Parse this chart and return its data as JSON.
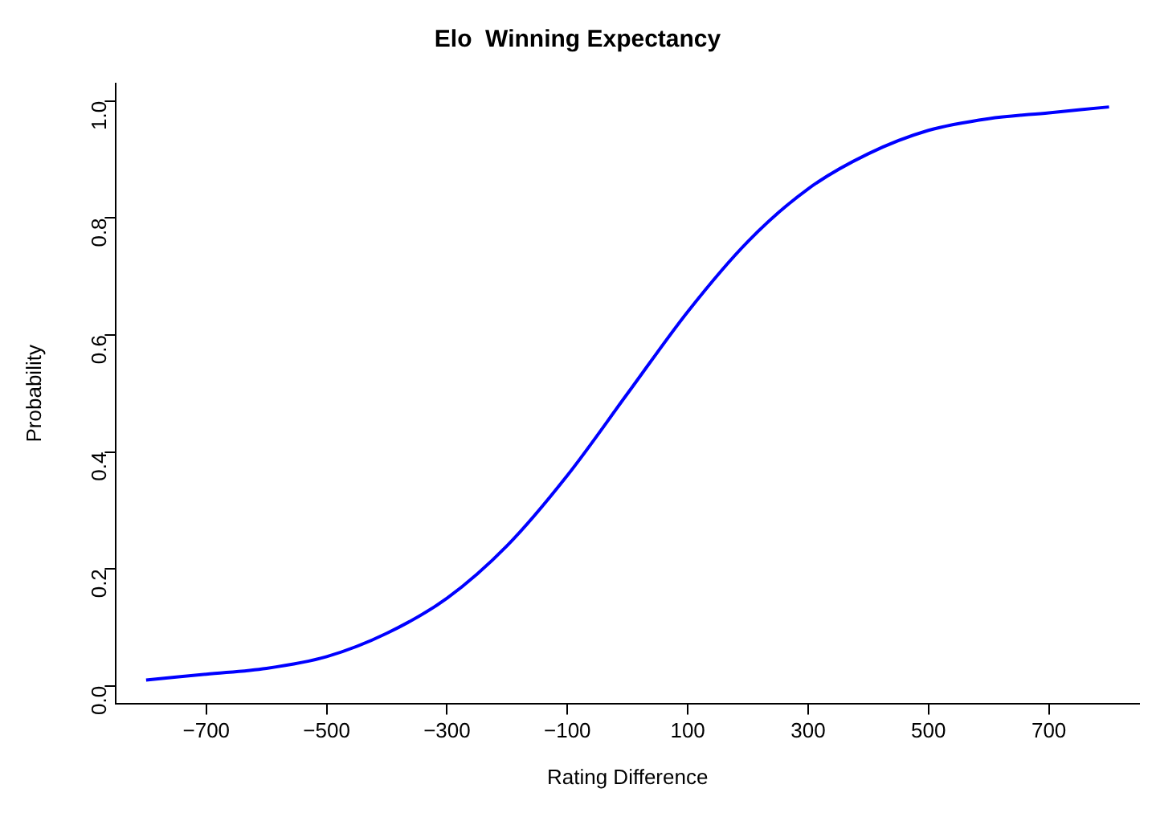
{
  "chart_data": {
    "type": "line",
    "title": "Elo  Winning Expectancy",
    "xlabel": "Rating Difference",
    "ylabel": "Probability",
    "x": [
      -800,
      -700,
      -600,
      -500,
      -400,
      -300,
      -200,
      -100,
      0,
      100,
      200,
      300,
      400,
      500,
      600,
      700,
      800
    ],
    "series": [
      {
        "color": "#0000ff",
        "values": [
          0.01,
          0.02,
          0.03,
          0.05,
          0.09,
          0.15,
          0.24,
          0.36,
          0.5,
          0.64,
          0.76,
          0.85,
          0.91,
          0.95,
          0.97,
          0.98,
          0.99
        ]
      }
    ],
    "xlim": [
      -850,
      850
    ],
    "xticks": [
      -700,
      -500,
      -300,
      -100,
      100,
      300,
      500,
      700
    ],
    "ylim": [
      -0.03,
      1.03
    ],
    "yticks": [
      {
        "value": 0,
        "label": "0.0"
      },
      {
        "value": 0.2,
        "label": "0.2"
      },
      {
        "value": 0.4,
        "label": "0.4"
      },
      {
        "value": 0.6,
        "label": "0.6"
      },
      {
        "value": 0.8,
        "label": "0.8"
      },
      {
        "value": 1,
        "label": "1.0"
      }
    ],
    "grid": false,
    "legend": false,
    "marker": "none",
    "line_style": "solid"
  }
}
